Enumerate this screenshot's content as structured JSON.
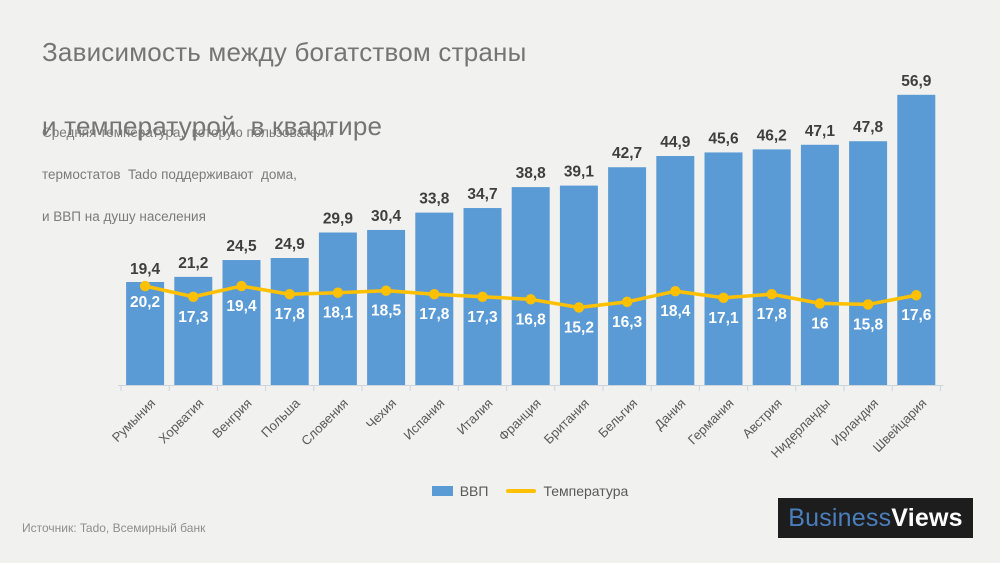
{
  "header": {
    "title_line1": "Зависимость между богатством страны",
    "title_line2": "и температурой  в квартире",
    "subtitle_line1": "Средняя температура,  которую пользователи",
    "subtitle_line2": "термостатов  Tado поддерживают  дома,",
    "subtitle_line3": "и ВВП на душу населения"
  },
  "chart_data": {
    "type": "bar",
    "subtype": "combo-bar-line",
    "title": "Зависимость между богатством страны и температурой в квартире",
    "categories": [
      "Румыния",
      "Хорватия",
      "Венгрия",
      "Польша",
      "Словения",
      "Чехия",
      "Испания",
      "Италия",
      "Франция",
      "Британия",
      "Бельгия",
      "Дания",
      "Германия",
      "Австрия",
      "Нидерланды",
      "Ирландия",
      "Швейцария"
    ],
    "series": [
      {
        "name": "ВВП",
        "type": "bar",
        "color": "#5b9bd5",
        "values": [
          20.2,
          21.2,
          24.5,
          24.9,
          29.9,
          30.4,
          33.8,
          34.7,
          38.8,
          39.1,
          42.7,
          44.9,
          45.6,
          46.2,
          47.1,
          47.8,
          56.9
        ]
      },
      {
        "name": "Температура",
        "type": "line",
        "color": "#ffc000",
        "values": [
          19.4,
          17.3,
          19.4,
          17.8,
          18.1,
          18.5,
          17.8,
          17.3,
          16.8,
          15.2,
          16.3,
          18.4,
          17.1,
          17.8,
          16,
          15.8,
          17.6
        ]
      }
    ],
    "value_axis": {
      "min": 0,
      "max": 60,
      "visible": false
    },
    "gridlines": false,
    "legend_position": "bottom",
    "decimal_separator": ",",
    "xlabel": "",
    "ylabel": ""
  },
  "legend": {
    "bar_label": "ВВП",
    "line_label": "Температура"
  },
  "footer": {
    "source": "Источник: Tado, Всемирный банк",
    "logo_part1": "Business",
    "logo_part2": "Views"
  },
  "colors": {
    "bar": "#5b9bd5",
    "line": "#ffc000",
    "value_label_dark": "#3f3f3f",
    "value_label_light": "#ffffff",
    "axis": "#ccd4e0",
    "category_label": "#595959",
    "background": "#f1f1ef"
  }
}
